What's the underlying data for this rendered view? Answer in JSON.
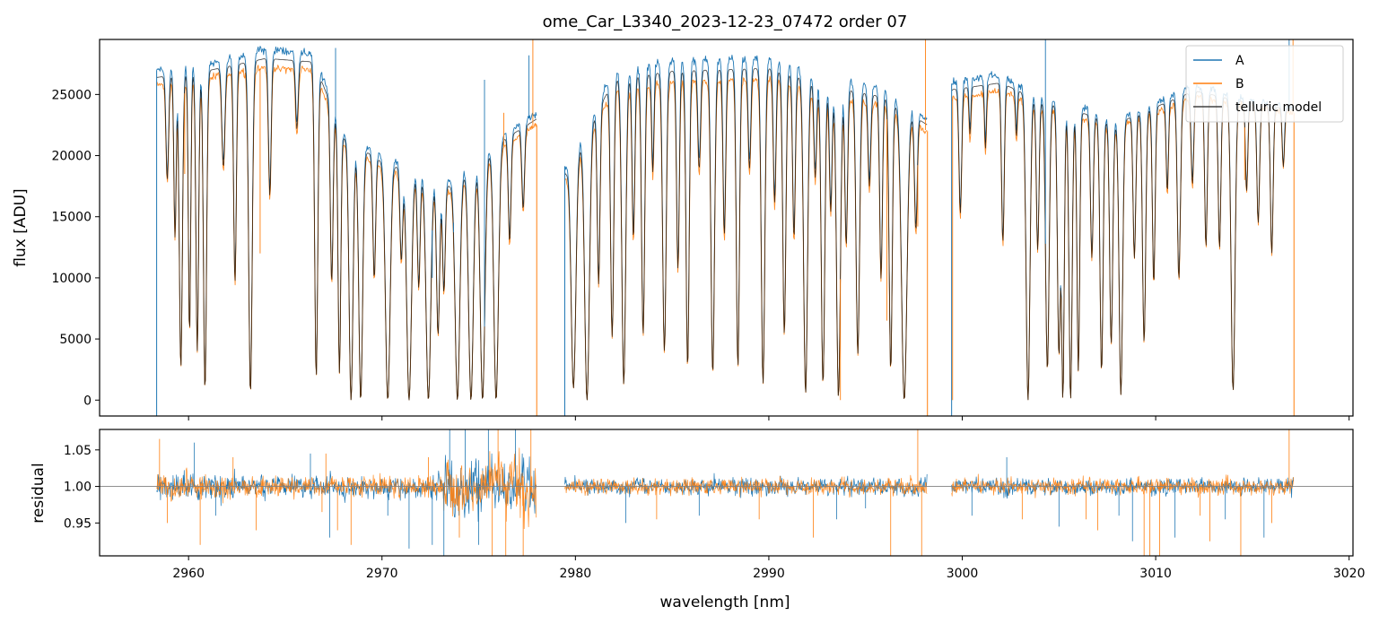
{
  "chart_data": {
    "type": "line",
    "title": "ome_Car_L3340_2023-12-23_07472  order 07",
    "xlabel": "wavelength [nm]",
    "xlim": [
      2955.4,
      3020.2
    ],
    "xticks": [
      2960,
      2970,
      2980,
      2990,
      3000,
      3010,
      3020
    ],
    "xtick_labels": [
      "2960",
      "2970",
      "2980",
      "2990",
      "3000",
      "3010",
      "3020"
    ],
    "segments": [
      [
        2958.35,
        2978.0
      ],
      [
        2979.45,
        2998.2
      ],
      [
        2999.45,
        3017.15
      ]
    ],
    "panels": [
      {
        "name": "flux",
        "ylabel": "flux [ADU]",
        "ylim": [
          -1300,
          29500
        ],
        "yticks": [
          0,
          5000,
          10000,
          15000,
          20000,
          25000
        ],
        "ytick_labels": [
          "0",
          "5000",
          "10000",
          "15000",
          "20000",
          "25000"
        ],
        "series": [
          {
            "name": "A",
            "color": "#1f77b4"
          },
          {
            "name": "B",
            "color": "#ff7f0e"
          },
          {
            "name": "telluric model",
            "color": "#000000"
          }
        ],
        "continuum_A": [
          [
            2958.4,
            27000
          ],
          [
            2961,
            27500
          ],
          [
            2964,
            28700
          ],
          [
            2966.5,
            28300
          ],
          [
            2968,
            22000
          ],
          [
            2970,
            20000
          ],
          [
            2973.5,
            18000
          ],
          [
            2976,
            21500
          ],
          [
            2978,
            23500
          ],
          [
            2979.5,
            19000
          ],
          [
            2982,
            27000
          ],
          [
            2985,
            27800
          ],
          [
            2990,
            28000
          ],
          [
            2993,
            26500
          ],
          [
            2996,
            25500
          ],
          [
            2998.2,
            23000
          ],
          [
            2999.5,
            26000
          ],
          [
            3002,
            26600
          ],
          [
            3004,
            25000
          ],
          [
            3008,
            23000
          ],
          [
            3012,
            25800
          ],
          [
            3015,
            24500
          ],
          [
            3017.1,
            24000
          ]
        ],
        "continuum_B": [
          [
            2958.4,
            25800
          ],
          [
            2961,
            26400
          ],
          [
            2964,
            27200
          ],
          [
            2966.5,
            27000
          ],
          [
            2968,
            21000
          ],
          [
            2970,
            19000
          ],
          [
            2973.5,
            17000
          ],
          [
            2976,
            20500
          ],
          [
            2978,
            22500
          ],
          [
            2979.5,
            18000
          ],
          [
            2982,
            25500
          ],
          [
            2985,
            26000
          ],
          [
            2990,
            26300
          ],
          [
            2993,
            25000
          ],
          [
            2996,
            24000
          ],
          [
            2998.2,
            22000
          ],
          [
            2999.5,
            24800
          ],
          [
            3002,
            25300
          ],
          [
            3004,
            24000
          ],
          [
            3008,
            22300
          ],
          [
            3012,
            24800
          ],
          [
            3015,
            24000
          ],
          [
            3017.1,
            23500
          ]
        ],
        "absorption_lines": [
          [
            2958.9,
            0.32,
            0.07
          ],
          [
            2959.3,
            0.5,
            0.06
          ],
          [
            2959.6,
            0.9,
            0.08
          ],
          [
            2960.05,
            0.8,
            0.06
          ],
          [
            2960.45,
            0.85,
            0.07
          ],
          [
            2960.85,
            0.97,
            0.08
          ],
          [
            2961.8,
            0.3,
            0.08
          ],
          [
            2962.4,
            0.65,
            0.07
          ],
          [
            2963.2,
            0.98,
            0.09
          ],
          [
            2964.2,
            0.4,
            0.07
          ],
          [
            2965.6,
            0.2,
            0.07
          ],
          [
            2966.6,
            0.93,
            0.08
          ],
          [
            2967.4,
            0.6,
            0.07
          ],
          [
            2967.8,
            0.9,
            0.07
          ],
          [
            2968.4,
            1.0,
            0.1
          ],
          [
            2968.9,
            1.0,
            0.1
          ],
          [
            2969.6,
            0.5,
            0.07
          ],
          [
            2970.3,
            1.0,
            0.12
          ],
          [
            2971.0,
            0.4,
            0.07
          ],
          [
            2971.4,
            1.0,
            0.12
          ],
          [
            2971.9,
            0.5,
            0.07
          ],
          [
            2972.4,
            1.0,
            0.12
          ],
          [
            2972.9,
            0.7,
            0.08
          ],
          [
            2973.2,
            0.5,
            0.07
          ],
          [
            2973.9,
            1.0,
            0.12
          ],
          [
            2974.6,
            1.0,
            0.12
          ],
          [
            2975.2,
            1.0,
            0.12
          ],
          [
            2975.9,
            1.0,
            0.12
          ],
          [
            2976.6,
            0.4,
            0.07
          ],
          [
            2977.3,
            0.3,
            0.07
          ],
          [
            2979.9,
            0.95,
            0.12
          ],
          [
            2980.6,
            1.0,
            0.12
          ],
          [
            2981.2,
            0.6,
            0.07
          ],
          [
            2981.9,
            0.8,
            0.08
          ],
          [
            2982.5,
            0.95,
            0.1
          ],
          [
            2983.0,
            0.5,
            0.07
          ],
          [
            2983.5,
            0.8,
            0.08
          ],
          [
            2984.0,
            0.3,
            0.06
          ],
          [
            2984.6,
            0.85,
            0.09
          ],
          [
            2985.3,
            0.6,
            0.07
          ],
          [
            2985.8,
            0.9,
            0.08
          ],
          [
            2986.4,
            0.3,
            0.07
          ],
          [
            2987.1,
            0.92,
            0.09
          ],
          [
            2987.7,
            0.5,
            0.07
          ],
          [
            2988.4,
            0.9,
            0.08
          ],
          [
            2989.0,
            0.3,
            0.07
          ],
          [
            2989.7,
            0.95,
            0.09
          ],
          [
            2990.3,
            0.4,
            0.07
          ],
          [
            2990.8,
            0.8,
            0.08
          ],
          [
            2991.3,
            0.5,
            0.07
          ],
          [
            2991.9,
            0.98,
            0.1
          ],
          [
            2992.4,
            0.3,
            0.07
          ],
          [
            2992.8,
            0.95,
            0.09
          ],
          [
            2993.2,
            0.4,
            0.07
          ],
          [
            2993.6,
            0.99,
            0.1
          ],
          [
            2994.0,
            0.5,
            0.07
          ],
          [
            2994.6,
            0.85,
            0.09
          ],
          [
            2995.2,
            0.3,
            0.07
          ],
          [
            2995.8,
            0.6,
            0.07
          ],
          [
            2996.3,
            0.9,
            0.08
          ],
          [
            2997.0,
            1.0,
            0.14
          ],
          [
            2997.6,
            0.4,
            0.07
          ],
          [
            2999.9,
            0.4,
            0.07
          ],
          [
            3000.4,
            0.15,
            0.05
          ],
          [
            3001.2,
            0.2,
            0.05
          ],
          [
            3002.1,
            0.5,
            0.07
          ],
          [
            3002.8,
            0.15,
            0.05
          ],
          [
            3003.4,
            1.0,
            0.1
          ],
          [
            3003.9,
            0.5,
            0.07
          ],
          [
            3004.4,
            0.9,
            0.09
          ],
          [
            3005.0,
            0.85,
            0.08
          ],
          [
            3005.2,
            1.0,
            0.07
          ],
          [
            3005.6,
            1.0,
            0.08
          ],
          [
            3006.0,
            0.9,
            0.07
          ],
          [
            3006.7,
            0.5,
            0.07
          ],
          [
            3007.2,
            0.9,
            0.08
          ],
          [
            3007.7,
            0.8,
            0.08
          ],
          [
            3008.2,
            0.98,
            0.09
          ],
          [
            3008.9,
            0.5,
            0.07
          ],
          [
            3009.4,
            0.8,
            0.08
          ],
          [
            3009.9,
            0.6,
            0.07
          ],
          [
            3010.6,
            0.3,
            0.06
          ],
          [
            3011.2,
            0.6,
            0.08
          ],
          [
            3011.9,
            0.3,
            0.07
          ],
          [
            3012.6,
            0.5,
            0.07
          ],
          [
            3013.3,
            0.5,
            0.07
          ],
          [
            3014.0,
            0.97,
            0.1
          ],
          [
            3014.7,
            0.3,
            0.06
          ],
          [
            3015.3,
            0.4,
            0.07
          ],
          [
            3016.0,
            0.5,
            0.07
          ],
          [
            3016.6,
            0.2,
            0.06
          ]
        ],
        "spikes": [
          [
            2959.8,
            18500,
            "B"
          ],
          [
            2963.7,
            12000,
            "B"
          ],
          [
            2967.6,
            28800,
            "A"
          ],
          [
            2972.6,
            10000,
            "A"
          ],
          [
            2973.7,
            14500,
            "A"
          ],
          [
            2975.3,
            26200,
            "A"
          ],
          [
            2976.3,
            23500,
            "B"
          ],
          [
            2977.6,
            28200,
            "A"
          ],
          [
            2977.8,
            29500,
            "B"
          ],
          [
            2993.7,
            0,
            "B"
          ],
          [
            2996.1,
            6500,
            "B"
          ],
          [
            2997.7,
            14200,
            "B"
          ],
          [
            2998.1,
            29500,
            "B"
          ],
          [
            2999.5,
            0,
            "B"
          ],
          [
            3004.3,
            29500,
            "A"
          ],
          [
            3014.6,
            18000,
            "B"
          ],
          [
            3016.9,
            29500,
            "A"
          ],
          [
            3017.1,
            29500,
            "B"
          ]
        ],
        "edge_drops": [
          2958.35,
          2978.0,
          2979.45,
          2998.2,
          2999.45,
          3017.15
        ]
      },
      {
        "name": "residual",
        "ylabel": "residual",
        "ylim": [
          0.905,
          1.078
        ],
        "yticks": [
          0.95,
          1.0,
          1.05
        ],
        "ytick_labels": [
          "0.95",
          "1.00",
          "1.05"
        ],
        "reference_line": 1.0,
        "noise_regions": [
          [
            2958.35,
            2962.5,
            0.015
          ],
          [
            2962.5,
            2968.2,
            0.011
          ],
          [
            2968.2,
            2973.2,
            0.012
          ],
          [
            2973.2,
            2978.0,
            0.032
          ],
          [
            2979.45,
            2998.2,
            0.009
          ],
          [
            2999.45,
            3017.15,
            0.009
          ]
        ],
        "residual_spikes": [
          [
            2958.5,
            1.065,
            "B"
          ],
          [
            2958.9,
            0.95,
            "B"
          ],
          [
            2960.3,
            1.06,
            "A"
          ],
          [
            2960.6,
            0.92,
            "B"
          ],
          [
            2961.4,
            0.96,
            "A"
          ],
          [
            2962.3,
            1.04,
            "B"
          ],
          [
            2963.5,
            0.94,
            "B"
          ],
          [
            2966.3,
            1.045,
            "A"
          ],
          [
            2966.9,
            0.965,
            "B"
          ],
          [
            2967.1,
            1.045,
            "B"
          ],
          [
            2967.3,
            0.93,
            "A"
          ],
          [
            2967.7,
            0.94,
            "B"
          ],
          [
            2968.4,
            0.92,
            "B"
          ],
          [
            2970.3,
            0.96,
            "A"
          ],
          [
            2971.4,
            0.915,
            "A"
          ],
          [
            2972.4,
            1.04,
            "B"
          ],
          [
            2972.6,
            0.92,
            "A"
          ],
          [
            2973.2,
            0.905,
            "A"
          ],
          [
            2973.5,
            1.078,
            "A"
          ],
          [
            2974.0,
            0.93,
            "B"
          ],
          [
            2974.3,
            1.078,
            "A"
          ],
          [
            2975.0,
            0.92,
            "A"
          ],
          [
            2975.5,
            1.078,
            "A"
          ],
          [
            2975.7,
            0.905,
            "B"
          ],
          [
            2976.0,
            1.078,
            "B"
          ],
          [
            2976.4,
            0.905,
            "B"
          ],
          [
            2976.9,
            1.078,
            "A"
          ],
          [
            2977.3,
            0.905,
            "B"
          ],
          [
            2977.7,
            1.078,
            "B"
          ],
          [
            2982.6,
            0.95,
            "A"
          ],
          [
            2984.2,
            0.955,
            "B"
          ],
          [
            2986.4,
            0.96,
            "A"
          ],
          [
            2989.5,
            0.955,
            "B"
          ],
          [
            2992.3,
            0.93,
            "B"
          ],
          [
            2993.5,
            0.955,
            "A"
          ],
          [
            2995.0,
            0.97,
            "A"
          ],
          [
            2996.3,
            0.905,
            "B"
          ],
          [
            2997.7,
            1.078,
            "B"
          ],
          [
            2997.9,
            0.905,
            "B"
          ],
          [
            3000.5,
            0.96,
            "A"
          ],
          [
            3002.3,
            1.04,
            "A"
          ],
          [
            3003.1,
            0.955,
            "B"
          ],
          [
            3005.0,
            0.945,
            "A"
          ],
          [
            3006.4,
            0.955,
            "B"
          ],
          [
            3007.0,
            0.94,
            "B"
          ],
          [
            3008.1,
            0.96,
            "A"
          ],
          [
            3008.8,
            0.925,
            "A"
          ],
          [
            3009.4,
            0.905,
            "B"
          ],
          [
            3009.7,
            0.905,
            "B"
          ],
          [
            3010.2,
            0.905,
            "B"
          ],
          [
            3011.0,
            0.93,
            "A"
          ],
          [
            3012.3,
            0.96,
            "B"
          ],
          [
            3012.8,
            0.925,
            "B"
          ],
          [
            3013.6,
            0.955,
            "A"
          ],
          [
            3014.4,
            0.905,
            "B"
          ],
          [
            3015.6,
            0.93,
            "A"
          ],
          [
            3016.0,
            0.95,
            "B"
          ],
          [
            3016.9,
            1.078,
            "B"
          ]
        ]
      }
    ],
    "legend": {
      "placement": "upper right",
      "entries": [
        "A",
        "B",
        "telluric model"
      ],
      "colors": [
        "#1f77b4",
        "#ff7f0e",
        "#404040"
      ]
    },
    "colors": {
      "A": "#1f77b4",
      "B": "#ff7f0e",
      "model": "#000000",
      "reference": "#808080"
    },
    "grid": false
  }
}
